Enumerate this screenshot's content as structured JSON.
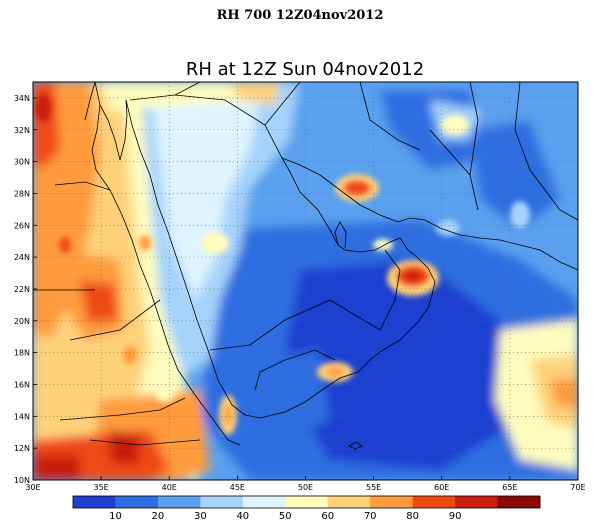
{
  "page_title": "RH 700 12Z04nov2012",
  "map": {
    "title": "RH at 12Z Sun 04nov2012",
    "lat_labels": [
      "34N",
      "32N",
      "30N",
      "28N",
      "26N",
      "24N",
      "22N",
      "20N",
      "18N",
      "16N",
      "14N",
      "12N",
      "10N"
    ],
    "lon_labels": [
      "30E",
      "35E",
      "40E",
      "45E",
      "50E",
      "55E",
      "60E",
      "65E",
      "70E"
    ],
    "lon_range": [
      30,
      70
    ],
    "lat_range": [
      10,
      35
    ],
    "grid": true
  },
  "colorbar": {
    "levels": [
      "10",
      "20",
      "30",
      "40",
      "50",
      "60",
      "70",
      "80",
      "90"
    ],
    "colors": [
      "#1e3fd0",
      "#2f6ee0",
      "#5aa0ee",
      "#a6d3fb",
      "#dff4ff",
      "#fffdbe",
      "#ffd27a",
      "#ff9b3c",
      "#f04a12",
      "#c81e0e",
      "#8c0a06"
    ]
  }
}
